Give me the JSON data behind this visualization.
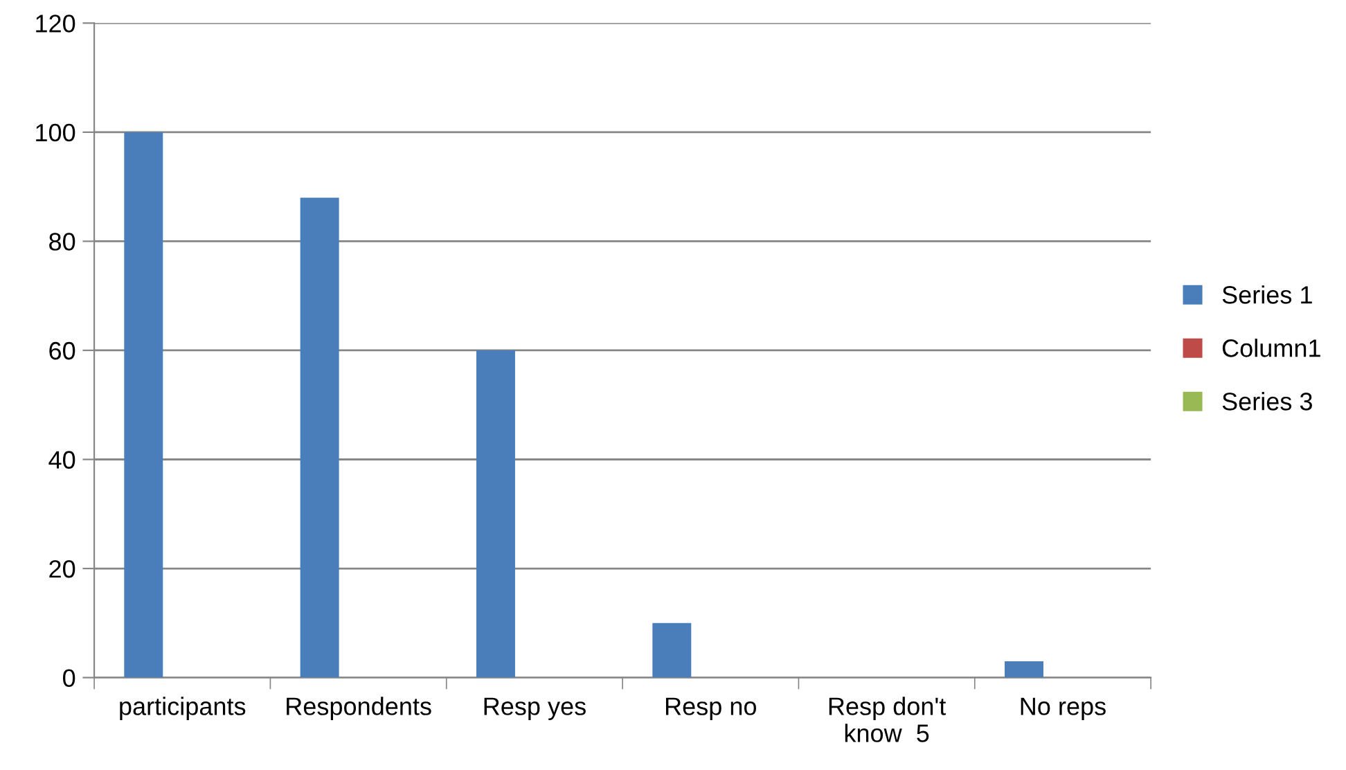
{
  "chart_data": {
    "type": "bar",
    "categories": [
      "participants",
      "Respondents",
      "Resp yes",
      "Resp no",
      "Resp don't know  5",
      "No reps"
    ],
    "series": [
      {
        "name": "Series 1",
        "color": "#4a7ebb",
        "values": [
          100,
          88,
          60,
          10,
          null,
          3
        ]
      },
      {
        "name": "Column1",
        "color": "#be4b48",
        "values": [
          null,
          null,
          null,
          null,
          null,
          null
        ]
      },
      {
        "name": "Series 3",
        "color": "#98b954",
        "values": [
          null,
          null,
          null,
          null,
          null,
          null
        ]
      }
    ],
    "ylim": [
      0,
      120
    ],
    "yticks": [
      0,
      20,
      40,
      60,
      80,
      100,
      120
    ],
    "grid": "y",
    "legend": "right"
  }
}
